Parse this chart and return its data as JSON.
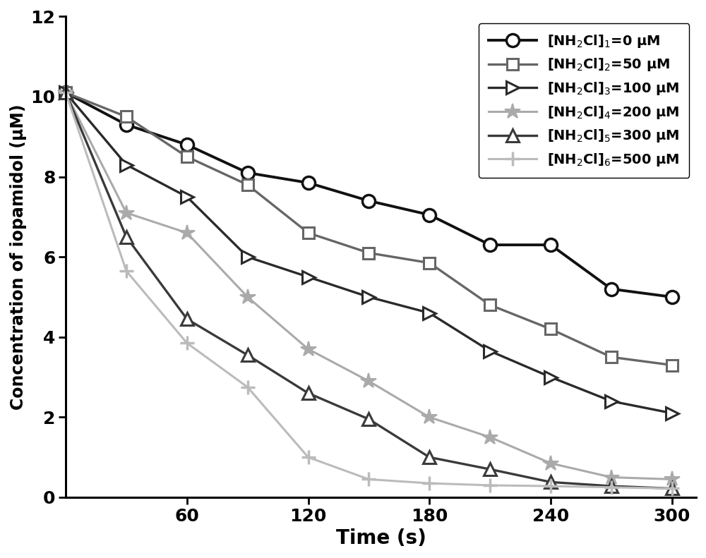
{
  "series": [
    {
      "label_parts": [
        "[NH",
        "2",
        "Cl]",
        "1",
        "=0 μM"
      ],
      "label": "[NH$_2$Cl]$_1$=0 μM",
      "color": "#111111",
      "linewidth": 2.8,
      "marker": "o",
      "markersize": 13,
      "markerfacecolor": "white",
      "markeredgecolor": "#111111",
      "markeredgewidth": 2.5,
      "x": [
        0,
        30,
        60,
        90,
        120,
        150,
        180,
        210,
        240,
        270,
        300
      ],
      "y": [
        10.1,
        9.3,
        8.8,
        8.1,
        7.85,
        7.4,
        7.05,
        6.3,
        6.3,
        5.2,
        5.0
      ]
    },
    {
      "label": "[NH$_2$Cl]$_2$=50 μM",
      "color": "#666666",
      "linewidth": 2.4,
      "marker": "s",
      "markersize": 12,
      "markerfacecolor": "white",
      "markeredgecolor": "#666666",
      "markeredgewidth": 2.2,
      "x": [
        0,
        30,
        60,
        90,
        120,
        150,
        180,
        210,
        240,
        270,
        300
      ],
      "y": [
        10.1,
        9.5,
        8.5,
        7.8,
        6.6,
        6.1,
        5.85,
        4.8,
        4.2,
        3.5,
        3.3
      ]
    },
    {
      "label": "[NH$_2$Cl]$_3$=100 μM",
      "color": "#2a2a2a",
      "linewidth": 2.4,
      "marker": ">",
      "markersize": 13,
      "markerfacecolor": "white",
      "markeredgecolor": "#2a2a2a",
      "markeredgewidth": 2.2,
      "x": [
        0,
        30,
        60,
        90,
        120,
        150,
        180,
        210,
        240,
        270,
        300
      ],
      "y": [
        10.1,
        8.3,
        7.5,
        6.0,
        5.5,
        5.0,
        4.6,
        3.65,
        3.0,
        2.4,
        2.1
      ]
    },
    {
      "label": "[NH$_2$Cl]$_4$=200 μM",
      "color": "#aaaaaa",
      "linewidth": 2.2,
      "marker": "*",
      "markersize": 16,
      "markerfacecolor": "#aaaaaa",
      "markeredgecolor": "#aaaaaa",
      "markeredgewidth": 1.5,
      "x": [
        0,
        30,
        60,
        90,
        120,
        150,
        180,
        210,
        240,
        270,
        300
      ],
      "y": [
        10.1,
        7.1,
        6.6,
        5.0,
        3.7,
        2.9,
        2.0,
        1.5,
        0.85,
        0.5,
        0.45
      ]
    },
    {
      "label": "[NH$_2$Cl]$_5$=300 μM",
      "color": "#3a3a3a",
      "linewidth": 2.4,
      "marker": "^",
      "markersize": 13,
      "markerfacecolor": "white",
      "markeredgecolor": "#3a3a3a",
      "markeredgewidth": 2.2,
      "x": [
        0,
        30,
        60,
        90,
        120,
        150,
        180,
        210,
        240,
        270,
        300
      ],
      "y": [
        10.1,
        6.5,
        4.45,
        3.55,
        2.6,
        1.95,
        1.0,
        0.7,
        0.38,
        0.28,
        0.22
      ]
    },
    {
      "label": "[NH$_2$Cl]$_6$=500 μM",
      "color": "#bbbbbb",
      "linewidth": 2.2,
      "marker": "P",
      "markersize": 13,
      "markerfacecolor": "#bbbbbb",
      "markeredgecolor": "#bbbbbb",
      "markeredgewidth": 1.5,
      "x": [
        0,
        30,
        60,
        90,
        120,
        150,
        180,
        210,
        240,
        270,
        300
      ],
      "y": [
        10.1,
        5.65,
        3.85,
        2.75,
        1.0,
        0.45,
        0.35,
        0.3,
        0.28,
        0.25,
        0.22
      ]
    }
  ],
  "xlabel": "Time (s)",
  "ylabel": "Concentration of iopamidol (μM)",
  "xlim": [
    0,
    312
  ],
  "ylim": [
    0,
    12
  ],
  "xticks": [
    60,
    120,
    180,
    240,
    300
  ],
  "yticks": [
    0,
    2,
    4,
    6,
    8,
    10,
    12
  ],
  "legend_loc": "upper right",
  "figsize": [
    10.0,
    7.91
  ],
  "dpi": 100
}
